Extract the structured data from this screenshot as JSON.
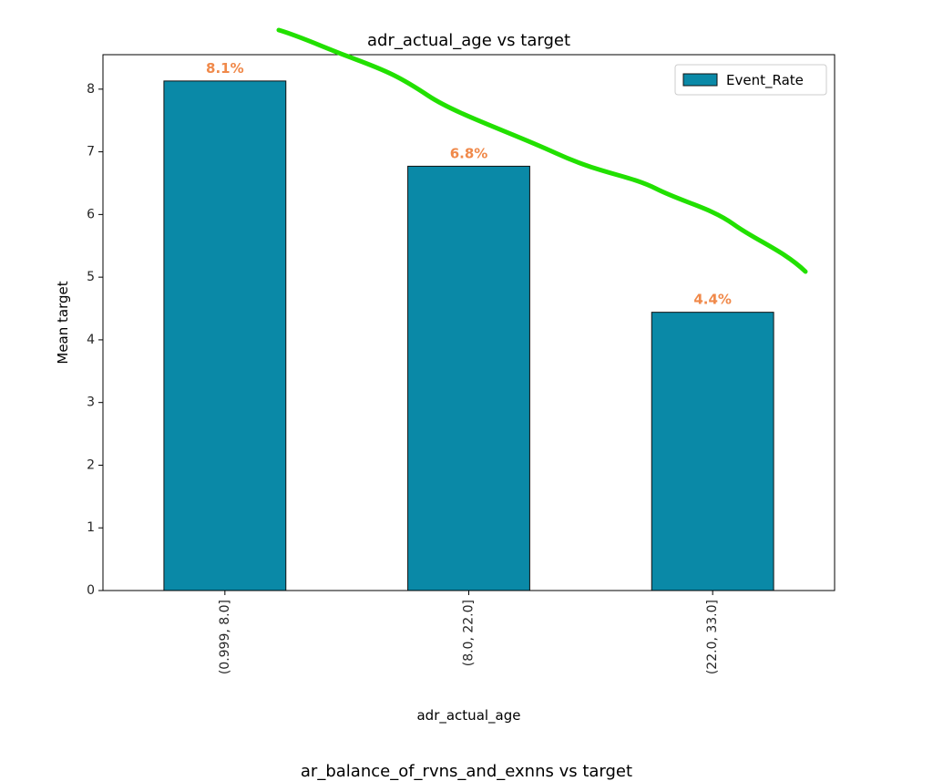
{
  "chart_data": {
    "type": "bar",
    "title": "adr_actual_age vs target",
    "xlabel": "adr_actual_age",
    "ylabel": "Mean target",
    "categories": [
      "(0.999, 8.0]",
      "(8.0, 22.0]",
      "(22.0, 33.0]"
    ],
    "series": [
      {
        "name": "Event_Rate",
        "values": [
          8.13,
          6.77,
          4.44
        ]
      }
    ],
    "data_labels": [
      "8.1%",
      "6.8%",
      "4.4%"
    ],
    "ylim": [
      0,
      8.55
    ],
    "yticks": [
      0,
      1,
      2,
      3,
      4,
      5,
      6,
      7,
      8
    ],
    "legend_position": "top-right",
    "grid": false,
    "colors": {
      "bar": "#0a89a7",
      "bar_edge": "#111111",
      "data_label": "#f0894a",
      "annotation": "#22e000"
    }
  },
  "next_chart_title": "ar_balance_of_rvns_and_exnns vs target"
}
